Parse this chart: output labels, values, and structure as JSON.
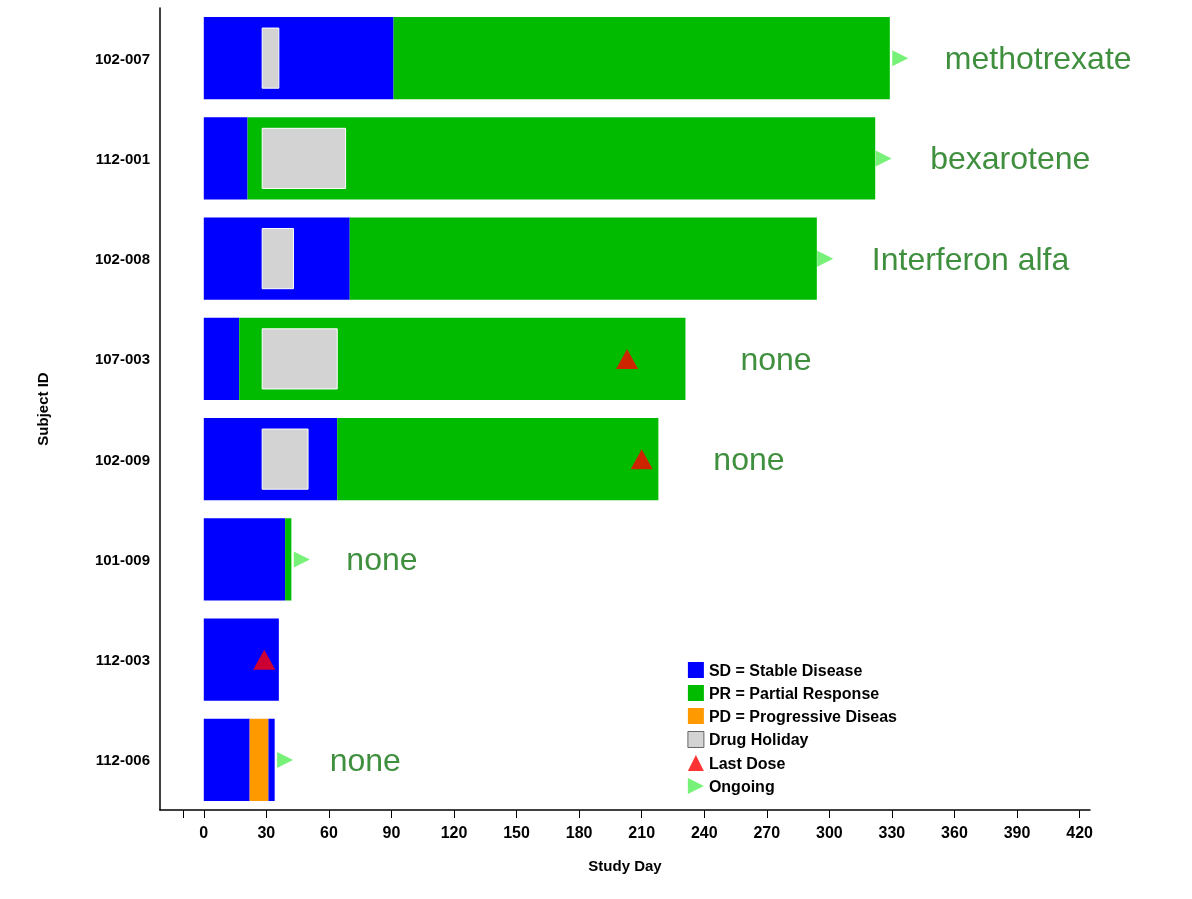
{
  "chart_data": {
    "type": "bar",
    "orientation": "horizontal",
    "xlabel": "Study Day",
    "ylabel": "Subject ID",
    "categories": [
      "102-007",
      "112-001",
      "102-008",
      "107-003",
      "102-009",
      "101-009",
      "112-003",
      "112-006"
    ],
    "xlim": [
      -21,
      425
    ],
    "xticks": [
      {
        "value": -10,
        "label": null
      },
      0,
      30,
      60,
      90,
      120,
      150,
      180,
      210,
      240,
      270,
      300,
      330,
      360,
      390,
      420
    ],
    "series": [
      {
        "name": "SD = Stable Disease",
        "color": "#0000ff",
        "base": [
          0,
          0,
          0,
          0,
          0,
          0,
          0,
          0
        ],
        "values": [
          91,
          21,
          70,
          17,
          64,
          39,
          36,
          22
        ]
      },
      {
        "name": "PR = Partial Response",
        "color": "#00bb00",
        "base": [
          91,
          21,
          70,
          17,
          64,
          39,
          null,
          null
        ],
        "values": [
          238,
          301,
          224,
          214,
          154,
          3,
          null,
          null
        ]
      },
      {
        "name": "PD = Progressive Diseas",
        "color": "#ff9900",
        "base": [
          null,
          null,
          null,
          null,
          null,
          null,
          null,
          22
        ],
        "values": [
          null,
          null,
          null,
          null,
          null,
          null,
          null,
          9
        ]
      },
      {
        "color": "#0000ff",
        "base": [
          null,
          null,
          null,
          null,
          null,
          null,
          null,
          31
        ],
        "values": [
          null,
          null,
          null,
          null,
          null,
          null,
          null,
          3
        ]
      },
      {
        "name": "Drug Holiday",
        "color": "#d3d3d3",
        "base": [
          28,
          28,
          28,
          28,
          28,
          null,
          null,
          null
        ],
        "values": [
          8,
          40,
          15,
          36,
          22,
          null,
          null,
          null
        ]
      },
      {
        "name": "Last Dose",
        "type": "scatter",
        "marker": "triangle",
        "color": "#ff0000",
        "x": [
          "107-003",
          "102-009",
          "112-003"
        ],
        "values": [
          203,
          210,
          29
        ]
      },
      {
        "name": "Ongoing",
        "type": "scatter",
        "marker": "triangle-right",
        "color": "#55ee55",
        "x": [
          "102-007",
          "112-001",
          "102-008",
          "101-009",
          "112-006"
        ],
        "values": [
          334,
          326,
          298,
          47,
          39
        ]
      }
    ],
    "annotations": [
      {
        "text": "methotrexate",
        "x": 329,
        "y": "102-007"
      },
      {
        "text": "bexarotene",
        "x": 322,
        "y": "112-001"
      },
      {
        "text": "Interferon alfa",
        "x": 294,
        "y": "102-008"
      },
      {
        "text": "none",
        "x": 231,
        "y": "107-003"
      },
      {
        "text": "none",
        "x": 218,
        "y": "102-009"
      },
      {
        "text": "none",
        "x": 42,
        "y": "101-009"
      },
      {
        "text": "none",
        "x": 34,
        "y": "112-006"
      }
    ],
    "legend": "bottom right"
  }
}
